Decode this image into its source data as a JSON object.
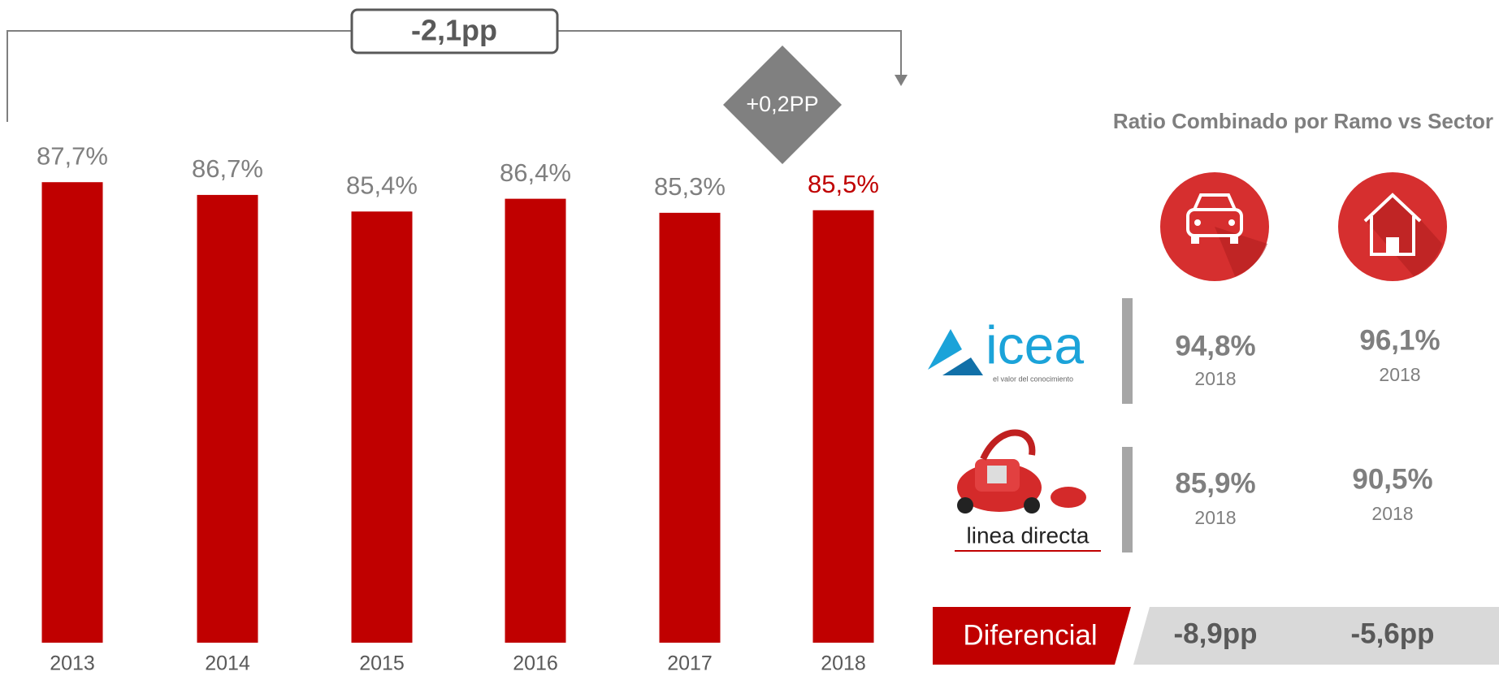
{
  "chart_data": {
    "type": "bar",
    "categories": [
      "2013",
      "2014",
      "2015",
      "2016",
      "2017",
      "2018"
    ],
    "values": [
      87.7,
      86.7,
      85.4,
      86.4,
      85.3,
      85.5
    ],
    "value_labels": [
      "87,7%",
      "86,7%",
      "85,4%",
      "86,4%",
      "85,3%",
      "85,5%"
    ],
    "value_label_colors": [
      "#7f7f7f",
      "#7f7f7f",
      "#7f7f7f",
      "#7f7f7f",
      "#7f7f7f",
      "#c00000"
    ],
    "color": "#c00000",
    "ylim": [
      51.6,
      93
    ],
    "annotations": {
      "total_change": "-2,1pp",
      "last_change": "+0,2PP"
    }
  },
  "panel": {
    "title": "Ratio Combinado por Ramo vs Sector",
    "rows": [
      {
        "logo": "icea",
        "logo_tagline": "el valor del conocimiento",
        "cells": [
          {
            "value": "94,8%",
            "year": "2018"
          },
          {
            "value": "96,1%",
            "year": "2018"
          }
        ]
      },
      {
        "logo": "linea directa",
        "cells": [
          {
            "value": "85,9%",
            "year": "2018"
          },
          {
            "value": "90,5%",
            "year": "2018"
          }
        ]
      }
    ],
    "difference": {
      "label": "Diferencial",
      "values": [
        "-8,9pp",
        "-5,6pp"
      ]
    }
  }
}
